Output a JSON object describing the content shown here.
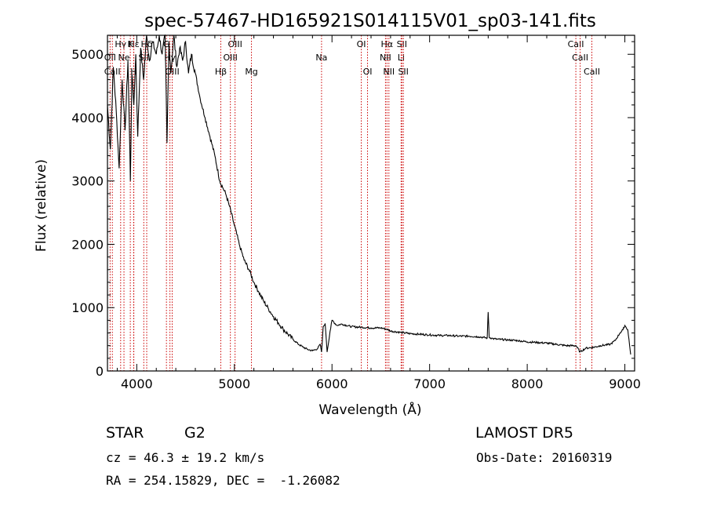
{
  "chart_data": {
    "type": "line",
    "title": "spec-57467-HD165921S014115V01_sp03-141.fits",
    "xlabel": "Wavelength (Å)",
    "ylabel": "Flux (relative)",
    "xlim": [
      3700,
      9100
    ],
    "ylim": [
      0,
      5300
    ],
    "x_ticks": [
      4000,
      5000,
      6000,
      7000,
      8000,
      9000
    ],
    "y_ticks": [
      0,
      1000,
      2000,
      3000,
      4000,
      5000
    ],
    "grid": false,
    "line_color": "#000000",
    "marker_color": "#cc0000",
    "series": [
      {
        "x": [
          3700,
          3730,
          3760,
          3790,
          3820,
          3850,
          3880,
          3910,
          3935,
          3950,
          3970,
          3990,
          4010,
          4040,
          4070,
          4100,
          4130,
          4160,
          4200,
          4230,
          4260,
          4290,
          4310,
          4330,
          4350,
          4380,
          4410,
          4440,
          4470,
          4500,
          4530,
          4560,
          4600,
          4650,
          4700,
          4750,
          4800,
          4850,
          4880,
          4910,
          4950,
          5000,
          5050,
          5100,
          5150,
          5200,
          5250,
          5300,
          5350,
          5400,
          5450,
          5500,
          5550,
          5600,
          5650,
          5700,
          5750,
          5800,
          5850,
          5880,
          5893,
          5900,
          5910,
          5930,
          5950,
          5980,
          6000,
          6050,
          6100,
          6200,
          6300,
          6400,
          6500,
          6560,
          6600,
          6700,
          6800,
          6900,
          7000,
          7100,
          7200,
          7300,
          7400,
          7500,
          7550,
          7590,
          7600,
          7610,
          7650,
          7700,
          7800,
          7900,
          8000,
          8100,
          8200,
          8300,
          8400,
          8500,
          8540,
          8600,
          8660,
          8700,
          8750,
          8800,
          8850,
          8900,
          8950,
          8980,
          9000,
          9030,
          9060
        ],
        "y": [
          4200,
          3500,
          4800,
          4100,
          3200,
          4600,
          3800,
          4900,
          3000,
          4700,
          4200,
          5000,
          3700,
          5100,
          4600,
          5300,
          4900,
          5200,
          5000,
          5300,
          5000,
          5300,
          3600,
          5200,
          4700,
          5300,
          4800,
          5100,
          4900,
          5200,
          4700,
          5000,
          4700,
          4300,
          4000,
          3700,
          3400,
          3000,
          2900,
          2800,
          2600,
          2300,
          2000,
          1750,
          1600,
          1400,
          1250,
          1100,
          980,
          860,
          760,
          660,
          580,
          500,
          430,
          380,
          340,
          320,
          350,
          420,
          300,
          450,
          700,
          750,
          300,
          620,
          800,
          720,
          740,
          700,
          690,
          680,
          680,
          660,
          630,
          610,
          590,
          580,
          570,
          560,
          560,
          550,
          550,
          540,
          530,
          520,
          930,
          530,
          510,
          500,
          490,
          480,
          460,
          450,
          440,
          420,
          400,
          400,
          300,
          360,
          370,
          380,
          400,
          410,
          420,
          480,
          600,
          650,
          720,
          650,
          260
        ]
      }
    ],
    "lines": [
      {
        "label": "Hγ",
        "x": 3835,
        "row": 0
      },
      {
        "label": "K",
        "x": 3934,
        "row": 0
      },
      {
        "label": "Hε",
        "x": 3970,
        "row": 0
      },
      {
        "label": "OII",
        "x": 3727,
        "row": 1
      },
      {
        "label": "Ne",
        "x": 3869,
        "row": 1
      },
      {
        "label": "SII",
        "x": 4072,
        "row": 1
      },
      {
        "label": "CaII",
        "x": 3750,
        "row": 2
      },
      {
        "label": "H",
        "x": 3968,
        "row": 2
      },
      {
        "label": "Hδ",
        "x": 4102,
        "row": 0
      },
      {
        "label": "G",
        "x": 4304,
        "row": 0
      },
      {
        "label": "Hγ",
        "x": 4340,
        "row": 1
      },
      {
        "label": "OIII",
        "x": 4363,
        "row": 2
      },
      {
        "label": "OIII",
        "x": 5007,
        "row": 0
      },
      {
        "label": "OIII",
        "x": 4959,
        "row": 1
      },
      {
        "label": "Hβ",
        "x": 4861,
        "row": 2
      },
      {
        "label": "Mg",
        "x": 5175,
        "row": 2
      },
      {
        "label": "Na",
        "x": 5893,
        "row": 1
      },
      {
        "label": "OI",
        "x": 6300,
        "row": 0
      },
      {
        "label": "OI",
        "x": 6364,
        "row": 2
      },
      {
        "label": "Hα",
        "x": 6563,
        "row": 0
      },
      {
        "label": "NII",
        "x": 6548,
        "row": 1
      },
      {
        "label": "NII",
        "x": 6583,
        "row": 2
      },
      {
        "label": "SII",
        "x": 6716,
        "row": 0
      },
      {
        "label": "Li",
        "x": 6708,
        "row": 1
      },
      {
        "label": "SII",
        "x": 6731,
        "row": 2
      },
      {
        "label": "CaII",
        "x": 8498,
        "row": 0
      },
      {
        "label": "CaII",
        "x": 8542,
        "row": 1
      },
      {
        "label": "CaII",
        "x": 8662,
        "row": 2
      }
    ]
  },
  "info": {
    "object_class": "STAR",
    "subclass": "G2",
    "survey": "LAMOST DR5",
    "cz": "cz = 46.3 ± 19.2 km/s",
    "obs_date": "Obs-Date: 20160319",
    "coords": "RA = 254.15829, DEC =  -1.26082"
  }
}
